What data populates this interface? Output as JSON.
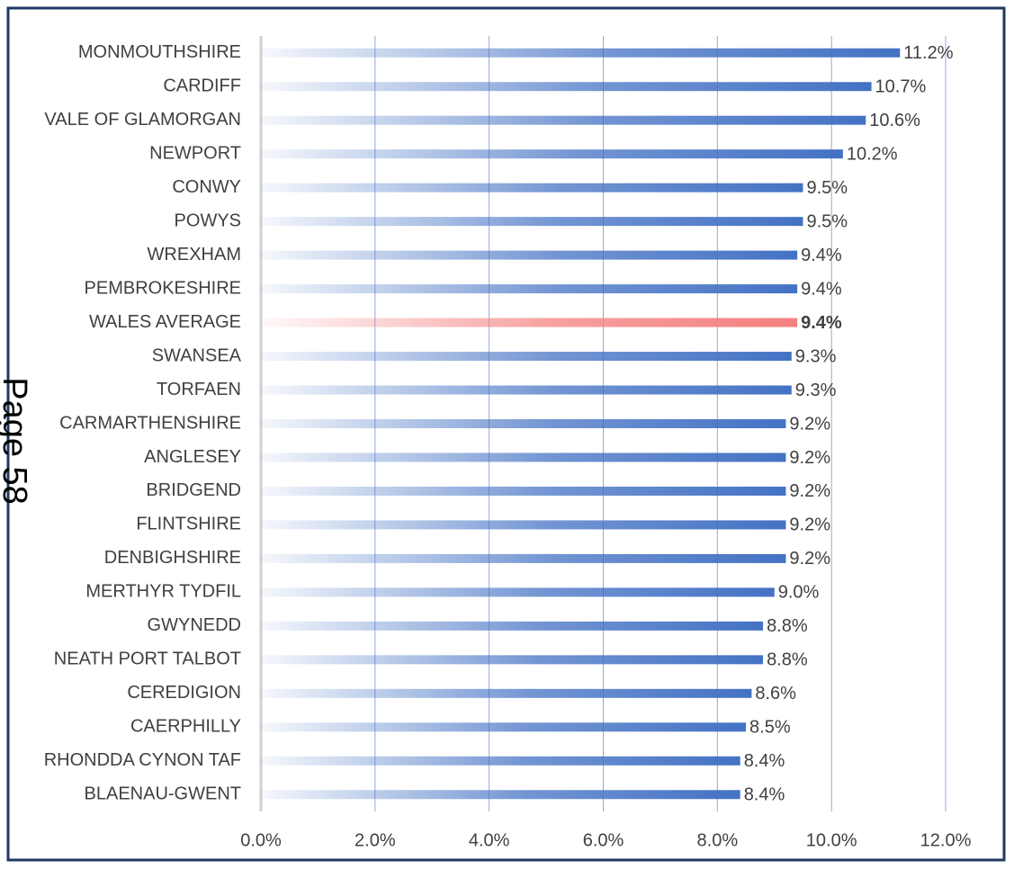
{
  "chart_data": {
    "type": "barh",
    "categories": [
      "MONMOUTHSHIRE",
      "CARDIFF",
      "VALE OF GLAMORGAN",
      "NEWPORT",
      "CONWY",
      "POWYS",
      "WREXHAM",
      "PEMBROKESHIRE",
      "WALES AVERAGE",
      "SWANSEA",
      "TORFAEN",
      "CARMARTHENSHIRE",
      "ANGLESEY",
      "BRIDGEND",
      "FLINTSHIRE",
      "DENBIGHSHIRE",
      "MERTHYR TYDFIL",
      "GWYNEDD",
      "NEATH PORT TALBOT",
      "CEREDIGION",
      "CAERPHILLY",
      "RHONDDA CYNON TAF",
      "BLAENAU-GWENT"
    ],
    "values": [
      11.2,
      10.7,
      10.6,
      10.2,
      9.5,
      9.5,
      9.4,
      9.4,
      9.4,
      9.3,
      9.3,
      9.2,
      9.2,
      9.2,
      9.2,
      9.2,
      9.0,
      8.8,
      8.8,
      8.6,
      8.5,
      8.4,
      8.4
    ],
    "value_labels": [
      "11.2%",
      "10.7%",
      "10.6%",
      "10.2%",
      "9.5%",
      "9.5%",
      "9.4%",
      "9.4%",
      "9.4%",
      "9.3%",
      "9.3%",
      "9.2%",
      "9.2%",
      "9.2%",
      "9.2%",
      "9.2%",
      "9.0%",
      "8.8%",
      "8.8%",
      "8.6%",
      "8.5%",
      "8.4%",
      "8.4%"
    ],
    "color": "#4472c4",
    "colors": [
      "#4472c4",
      "#4472c4",
      "#4472c4",
      "#4472c4",
      "#4472c4",
      "#4472c4",
      "#4472c4",
      "#4472c4",
      "#f4807f",
      "#4472c4",
      "#4472c4",
      "#4472c4",
      "#4472c4",
      "#4472c4",
      "#4472c4",
      "#4472c4",
      "#4472c4",
      "#4472c4",
      "#4472c4",
      "#4472c4",
      "#4472c4",
      "#4472c4",
      "#4472c4"
    ],
    "xlim": [
      0,
      12
    ],
    "xticks": [
      {
        "value": 0,
        "label": "0.0%"
      },
      {
        "value": 2,
        "label": "2.0%"
      },
      {
        "value": 4,
        "label": "4.0%"
      },
      {
        "value": 6,
        "label": "6.0%"
      },
      {
        "value": 8,
        "label": "8.0%"
      },
      {
        "value": 10,
        "label": "10.0%"
      },
      {
        "value": 12,
        "label": "12.0%"
      }
    ],
    "grid": true,
    "annotation": "Page 58"
  }
}
